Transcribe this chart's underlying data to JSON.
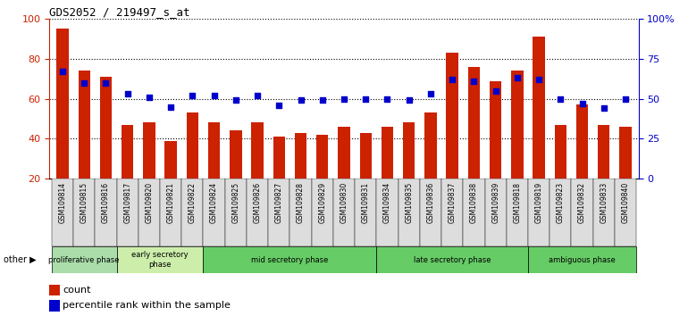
{
  "title": "GDS2052 / 219497_s_at",
  "samples": [
    "GSM109814",
    "GSM109815",
    "GSM109816",
    "GSM109817",
    "GSM109820",
    "GSM109821",
    "GSM109822",
    "GSM109824",
    "GSM109825",
    "GSM109826",
    "GSM109827",
    "GSM109828",
    "GSM109829",
    "GSM109830",
    "GSM109831",
    "GSM109834",
    "GSM109835",
    "GSM109836",
    "GSM109837",
    "GSM109838",
    "GSM109839",
    "GSM109818",
    "GSM109819",
    "GSM109823",
    "GSM109832",
    "GSM109833",
    "GSM109840"
  ],
  "counts": [
    95,
    74,
    71,
    47,
    48,
    39,
    53,
    48,
    44,
    48,
    41,
    43,
    42,
    46,
    43,
    46,
    48,
    53,
    83,
    76,
    69,
    74,
    91,
    47,
    57,
    47,
    46
  ],
  "percentile": [
    67,
    60,
    60,
    53,
    51,
    45,
    52,
    52,
    49,
    52,
    46,
    49,
    49,
    50,
    50,
    50,
    49,
    53,
    62,
    61,
    55,
    63,
    62,
    50,
    47,
    44,
    50
  ],
  "phases": [
    {
      "label": "proliferative phase",
      "start": 0,
      "end": 3,
      "color": "#aaddaa"
    },
    {
      "label": "early secretory\nphase",
      "start": 3,
      "end": 7,
      "color": "#cceeaa"
    },
    {
      "label": "mid secretory phase",
      "start": 7,
      "end": 15,
      "color": "#66cc66"
    },
    {
      "label": "late secretory phase",
      "start": 15,
      "end": 22,
      "color": "#66cc66"
    },
    {
      "label": "ambiguous phase",
      "start": 22,
      "end": 27,
      "color": "#66cc66"
    }
  ],
  "bar_color": "#cc2200",
  "percentile_color": "#0000cc",
  "ylim_left": [
    20,
    100
  ],
  "ylim_right": [
    0,
    100
  ],
  "right_ytick_labels": [
    "0",
    "25",
    "50",
    "75",
    "100%"
  ],
  "right_yticks": [
    0,
    25,
    50,
    75,
    100
  ],
  "left_yticks": [
    20,
    40,
    60,
    80,
    100
  ],
  "xlabel_color": "#cc2200",
  "right_axis_color": "#0000cc",
  "tick_label_bg": "#dddddd"
}
